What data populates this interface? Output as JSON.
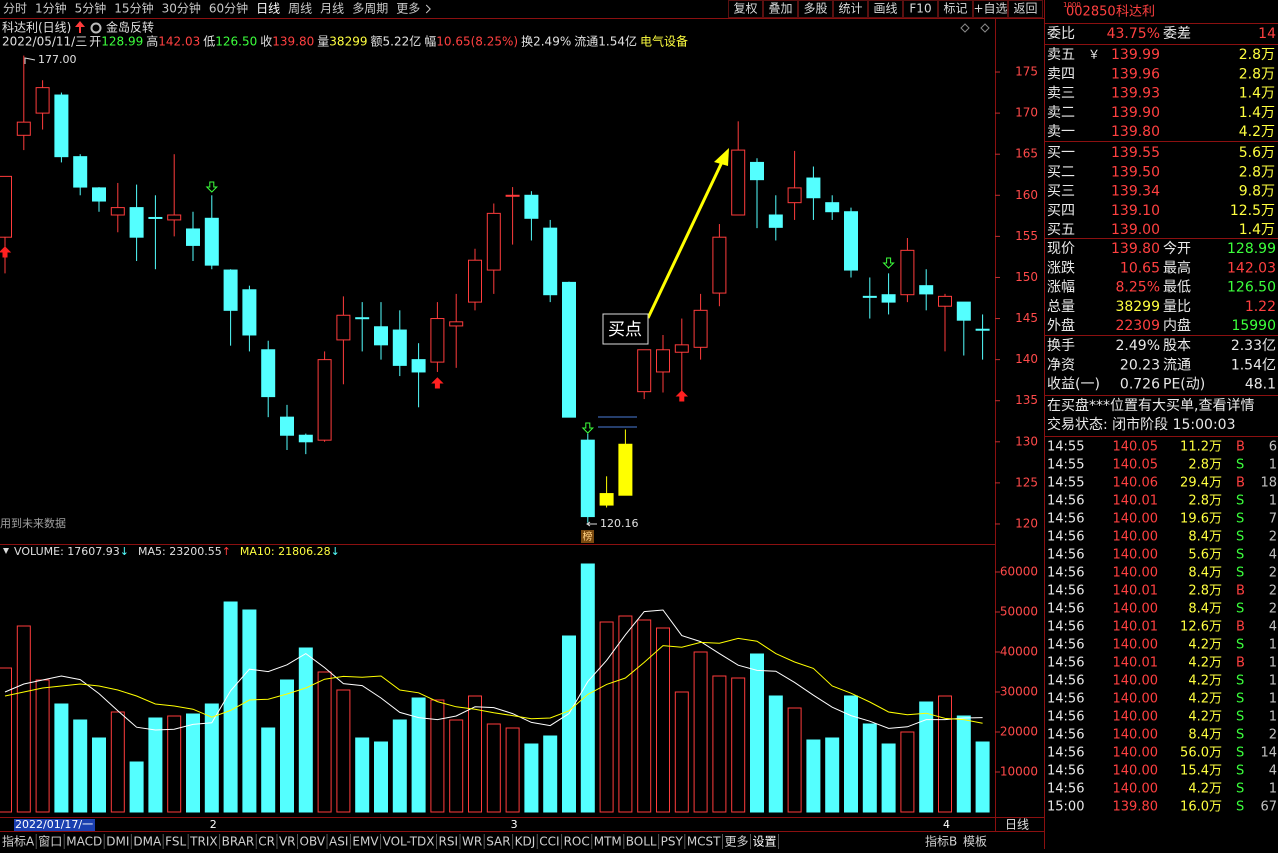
{
  "menu": {
    "periods": [
      "分时",
      "1分钟",
      "5分钟",
      "15分钟",
      "30分钟",
      "60分钟",
      "日线",
      "周线",
      "月线",
      "多周期",
      "更多"
    ],
    "tools": [
      "复权",
      "叠加",
      "多股",
      "统计",
      "画线",
      "F10",
      "标记",
      "+自选",
      "返回"
    ]
  },
  "stock_header": {
    "badge": "1000",
    "code": "002850",
    "name": "科达利"
  },
  "chart_title": {
    "name": "科达利(日线)",
    "pattern": "金岛反转"
  },
  "info_line": {
    "date": "2022/05/11/三",
    "items": [
      {
        "label": "开",
        "value": "128.99",
        "color": "#3cff3c"
      },
      {
        "label": "高",
        "value": "142.03",
        "color": "#ff4040"
      },
      {
        "label": "低",
        "value": "126.50",
        "color": "#3cff3c"
      },
      {
        "label": "收",
        "value": "139.80",
        "color": "#ff4040"
      },
      {
        "label": "量",
        "value": "38299",
        "color": "#ffff40"
      },
      {
        "label": "额",
        "value": "5.22亿",
        "color": "#e0e0e0"
      },
      {
        "label": "幅",
        "value": "10.65(8.25%)",
        "color": "#ff4040"
      },
      {
        "label": "换",
        "value": "2.49%",
        "color": "#e0e0e0"
      },
      {
        "label": "流通",
        "value": "1.54亿",
        "color": "#e0e0e0"
      }
    ],
    "sector": "电气设备"
  },
  "chart_data": [
    {
      "type": "candlestick",
      "period_label": "日线",
      "categories": [
        "2022/01/17/一",
        null,
        null,
        null,
        null,
        null,
        null,
        null,
        null,
        null,
        null,
        "2",
        null,
        null,
        null,
        null,
        null,
        null,
        null,
        null,
        null,
        null,
        null,
        null,
        null,
        null,
        null,
        "3",
        null,
        null,
        null,
        null,
        null,
        null,
        null,
        null,
        null,
        null,
        null,
        null,
        null,
        null,
        null,
        null,
        null,
        null,
        null,
        null,
        null,
        null,
        "4",
        null,
        null
      ],
      "open": [
        154.9,
        167.3,
        170.0,
        172.2,
        164.7,
        160.9,
        157.6,
        158.5,
        157.3,
        157.0,
        155.9,
        157.2,
        150.9,
        148.5,
        141.2,
        133.0,
        130.8,
        130.2,
        142.4,
        145.1,
        144.0,
        143.6,
        140.0,
        139.7,
        144.1,
        147.0,
        150.9,
        159.9,
        160.0,
        156.0,
        149.4,
        130.2,
        122.3,
        123.5,
        136.1,
        138.5,
        140.9,
        141.5,
        148.1,
        157.6,
        164.0,
        157.6,
        159.1,
        162.1,
        159.1,
        158.0,
        147.7,
        147.9,
        147.9,
        149.0,
        146.5,
        147.0,
        143.7
      ],
      "high": [
        162.3,
        177.0,
        174.0,
        172.5,
        165.0,
        161.0,
        161.5,
        161.3,
        160.0,
        165.0,
        158.0,
        160.0,
        151.0,
        149.0,
        142.3,
        134.5,
        131.0,
        141.0,
        147.7,
        147.0,
        147.0,
        146.0,
        142.0,
        147.0,
        148.0,
        153.5,
        159.0,
        161.0,
        160.5,
        157.0,
        149.5,
        131.0,
        125.8,
        131.5,
        141.2,
        143.0,
        145.0,
        148.0,
        156.5,
        169.0,
        164.5,
        160.0,
        165.4,
        163.5,
        160.0,
        158.5,
        150.0,
        150.5,
        154.8,
        151.0,
        148.0,
        147.0,
        145.5
      ],
      "low": [
        150.5,
        165.5,
        168.0,
        164.0,
        160.0,
        158.0,
        155.5,
        152.0,
        151.0,
        155.0,
        152.0,
        151.0,
        141.7,
        141.0,
        133.0,
        129.0,
        128.5,
        130.0,
        137.0,
        141.0,
        140.0,
        138.0,
        134.2,
        138.5,
        139.0,
        146.0,
        148.0,
        154.0,
        154.5,
        147.0,
        133.0,
        120.16,
        122.0,
        123.5,
        135.2,
        136.0,
        135.5,
        140.0,
        146.5,
        157.6,
        156.0,
        154.5,
        157.0,
        157.0,
        157.0,
        150.0,
        145.0,
        145.5,
        147.0,
        146.0,
        141.0,
        140.5,
        140.0
      ],
      "close": [
        162.3,
        168.9,
        173.1,
        164.7,
        161.0,
        159.3,
        158.5,
        154.9,
        157.2,
        157.6,
        153.9,
        151.5,
        146.0,
        143.0,
        135.5,
        130.8,
        130.0,
        140.0,
        145.4,
        145.0,
        141.8,
        139.3,
        138.5,
        145.0,
        144.6,
        152.1,
        157.8,
        160.0,
        157.2,
        147.9,
        133.0,
        120.9,
        123.7,
        129.7,
        141.2,
        141.2,
        141.8,
        146.0,
        154.9,
        165.5,
        161.9,
        156.1,
        160.9,
        159.7,
        158.0,
        150.9,
        147.6,
        147.0,
        153.3,
        148.0,
        147.7,
        144.8,
        143.6
      ],
      "up_color": "#ff3c3c",
      "down_color": "#54ffff",
      "highlight_color": "#ffff00",
      "highlight": [
        32,
        33
      ],
      "ylim": [
        118.05,
        177.68
      ],
      "yticks": [
        120,
        125,
        130,
        135,
        140,
        145,
        150,
        155,
        160,
        165,
        170,
        175
      ],
      "annotations": {
        "high_label": "177.00",
        "low_label": "120.16",
        "buy_point": "买点",
        "future_note": "用到未来数据",
        "badge": "榜"
      }
    },
    {
      "type": "volume",
      "header": [
        {
          "text": "VOLUME: 17607.93",
          "arrow": "↓",
          "color": "#e0e0e0",
          "arrow_color": "#54ffff"
        },
        {
          "text": "MA5: 23200.55",
          "arrow": "↑",
          "color": "#e0e0e0",
          "arrow_color": "#ff3c3c"
        },
        {
          "text": "MA10: 21806.28",
          "arrow": "↓",
          "color": "#ffff40",
          "arrow_color": "#54ffff"
        }
      ],
      "series": [
        {
          "values": [
            36000,
            46500,
            33000,
            27000,
            23000,
            18500,
            25000,
            12500,
            23500,
            24000,
            24500,
            27000,
            52500,
            50500,
            21000,
            33000,
            41000,
            35000,
            30500,
            18500,
            17500,
            23000,
            28500,
            28000,
            23000,
            29000,
            22000,
            21000,
            17000,
            19000,
            44000,
            62000,
            47500,
            49000,
            48000,
            46000,
            30000,
            40000,
            34000,
            33500,
            39500,
            29000,
            26000,
            18000,
            18500,
            29000,
            22000,
            17000,
            20000,
            27500,
            29000,
            24000,
            17500
          ]
        },
        {
          "color": "#ffffff",
          "values": [
            30000,
            32000,
            33000,
            34000,
            33100,
            29600,
            25300,
            21200,
            20500,
            20700,
            21900,
            22300,
            30300,
            35700,
            35100,
            36800,
            39600,
            36100,
            32100,
            31600,
            28500,
            24900,
            23600,
            23100,
            24000,
            26300,
            26100,
            24600,
            22400,
            21600,
            24600,
            32600,
            37900,
            44300,
            50100,
            50500,
            44100,
            42600,
            39600,
            36700,
            35400,
            35200,
            32400,
            29200,
            26200,
            24100,
            22700,
            20900,
            21300,
            23100,
            23100,
            23500,
            23600
          ]
        },
        {
          "color": "#ffff00",
          "values": [
            29000,
            30000,
            31000,
            31500,
            32000,
            31500,
            30500,
            29000,
            27000,
            26500,
            25700,
            23700,
            25400,
            28000,
            28200,
            29500,
            31000,
            33200,
            33900,
            33700,
            34000,
            30500,
            29800,
            27600,
            26300,
            25700,
            24800,
            24100,
            23300,
            23500,
            25300,
            29400,
            31900,
            33500,
            37400,
            41600,
            41200,
            42400,
            42200,
            43400,
            42700,
            39600,
            37500,
            35900,
            31500,
            29700,
            27500,
            25000,
            24300,
            24700,
            23400,
            23100,
            22200
          ]
        }
      ],
      "ylim": [
        0,
        66750
      ],
      "yticks": [
        10000,
        20000,
        30000,
        40000,
        50000,
        60000
      ]
    }
  ],
  "tabs": [
    "指标A",
    "窗口",
    "MACD",
    "DMI",
    "DMA",
    "FSL",
    "TRIX",
    "BRAR",
    "CR",
    "VR",
    "OBV",
    "ASI",
    "EMV",
    "VOL-TDX",
    "RSI",
    "WR",
    "SAR",
    "KDJ",
    "CCI",
    "ROC",
    "MTM",
    "BOLL",
    "PSY",
    "MCST",
    "更多",
    "设置"
  ],
  "tabs_right": [
    "指标B",
    "模板"
  ],
  "quote": {
    "ratio": [
      "委比",
      "43.75%",
      "委差",
      "14"
    ],
    "currency": "￥",
    "asks": [
      [
        "卖五",
        "139.99",
        "2.8万"
      ],
      [
        "卖四",
        "139.96",
        "2.8万"
      ],
      [
        "卖三",
        "139.93",
        "1.4万"
      ],
      [
        "卖二",
        "139.90",
        "1.4万"
      ],
      [
        "卖一",
        "139.80",
        "4.2万"
      ]
    ],
    "bids": [
      [
        "买一",
        "139.55",
        "5.6万"
      ],
      [
        "买二",
        "139.50",
        "2.8万"
      ],
      [
        "买三",
        "139.34",
        "9.8万"
      ],
      [
        "买四",
        "139.10",
        "12.5万"
      ],
      [
        "买五",
        "139.00",
        "1.4万"
      ]
    ],
    "stats": [
      [
        "现价",
        "139.80",
        "今开",
        "128.99"
      ],
      [
        "涨跌",
        "10.65",
        "最高",
        "142.03"
      ],
      [
        "涨幅",
        "8.25%",
        "最低",
        "126.50"
      ],
      [
        "总量",
        "38299",
        "量比",
        "1.22"
      ],
      [
        "外盘",
        "22309",
        "内盘",
        "15990"
      ],
      [
        "换手",
        "2.49%",
        "股本",
        "2.33亿"
      ],
      [
        "净资",
        "20.23",
        "流通",
        "1.54亿"
      ],
      [
        "收益(一)",
        "0.726",
        "PE(动)",
        "48.1"
      ]
    ],
    "notice": "在买盘***位置有大买单,查看详情",
    "status": "交易状态: 闭市阶段 15:00:03"
  },
  "trades": [
    [
      "14:55",
      "140.05",
      "11.2万",
      "B",
      "6"
    ],
    [
      "14:55",
      "140.05",
      "2.8万",
      "S",
      "1"
    ],
    [
      "14:55",
      "140.06",
      "29.4万",
      "B",
      "18"
    ],
    [
      "14:56",
      "140.01",
      "2.8万",
      "S",
      "1"
    ],
    [
      "14:56",
      "140.00",
      "19.6万",
      "S",
      "7"
    ],
    [
      "14:56",
      "140.00",
      "8.4万",
      "S",
      "2"
    ],
    [
      "14:56",
      "140.00",
      "5.6万",
      "S",
      "4"
    ],
    [
      "14:56",
      "140.00",
      "8.4万",
      "S",
      "2"
    ],
    [
      "14:56",
      "140.01",
      "2.8万",
      "B",
      "2"
    ],
    [
      "14:56",
      "140.00",
      "8.4万",
      "S",
      "2"
    ],
    [
      "14:56",
      "140.01",
      "12.6万",
      "B",
      "4"
    ],
    [
      "14:56",
      "140.00",
      "4.2万",
      "S",
      "1"
    ],
    [
      "14:56",
      "140.01",
      "4.2万",
      "B",
      "1"
    ],
    [
      "14:56",
      "140.00",
      "4.2万",
      "S",
      "1"
    ],
    [
      "14:56",
      "140.00",
      "4.2万",
      "S",
      "1"
    ],
    [
      "14:56",
      "140.00",
      "4.2万",
      "S",
      "1"
    ],
    [
      "14:56",
      "140.00",
      "8.4万",
      "S",
      "2"
    ],
    [
      "14:56",
      "140.00",
      "56.0万",
      "S",
      "14"
    ],
    [
      "14:56",
      "140.00",
      "15.4万",
      "S",
      "4"
    ],
    [
      "14:56",
      "140.00",
      "4.2万",
      "S",
      "1"
    ],
    [
      "15:00",
      "139.80",
      "16.0万",
      "S",
      "67"
    ]
  ]
}
